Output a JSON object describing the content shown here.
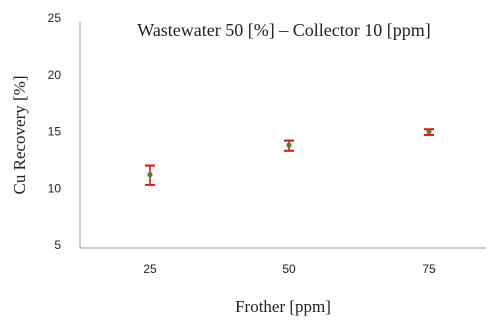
{
  "chart_data": {
    "type": "scatter",
    "title": "Wastewater 50 [%] – Collector 10 [ppm]",
    "xlabel": "Frother [ppm]",
    "ylabel": "Cu Recovery [%]",
    "x_ticks": [
      "25",
      "50",
      "75"
    ],
    "y_ticks": [
      "5",
      "10",
      "15",
      "20",
      "25"
    ],
    "ylim": [
      5,
      25
    ],
    "grid": false,
    "points": [
      {
        "x": 25,
        "y": 11.2,
        "err_low": 10.3,
        "err_high": 12.0
      },
      {
        "x": 50,
        "y": 13.8,
        "err_low": 13.3,
        "err_high": 14.2
      },
      {
        "x": 75,
        "y": 15.0,
        "err_low": 14.7,
        "err_high": 15.2
      }
    ],
    "colors": {
      "marker": "#5a7d2a",
      "error_bar": "#e01010",
      "axis": "#9a9a9a"
    }
  }
}
